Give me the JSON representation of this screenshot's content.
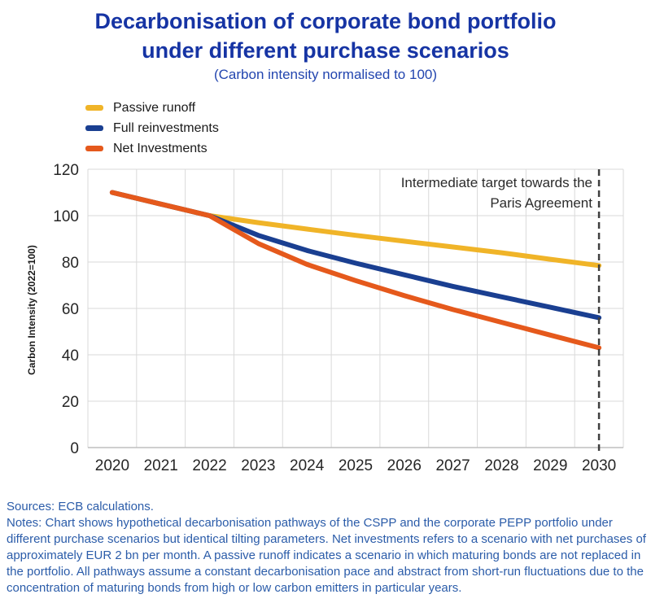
{
  "header": {
    "title_line1": "Decarbonisation of corporate bond portfolio",
    "title_line2": "under different purchase scenarios",
    "subtitle": "(Carbon intensity normalised to 100)"
  },
  "chart_data": {
    "type": "line",
    "x": [
      "2020",
      "2021",
      "2022",
      "2023",
      "2024",
      "2025",
      "2026",
      "2027",
      "2028",
      "2029",
      "2030"
    ],
    "series": [
      {
        "name": "Passive runoff",
        "color": "#F0B428",
        "values": [
          110,
          105,
          100,
          97,
          94.2,
          91.5,
          89,
          86.5,
          84,
          81.2,
          78.5
        ]
      },
      {
        "name": "Full reinvestments",
        "color": "#1A3F91",
        "values": [
          110,
          105,
          100,
          91.5,
          85,
          79.5,
          74.5,
          69.5,
          65,
          60.5,
          56
        ]
      },
      {
        "name": "Net Investments",
        "color": "#E5591C",
        "values": [
          110,
          105,
          100,
          88,
          79,
          72,
          65.5,
          59.5,
          54,
          48.5,
          43
        ]
      }
    ],
    "ylabel": "Carbon Intensity (2022=100)",
    "xlabel": "",
    "ylim": [
      0,
      120
    ],
    "ytick_step": 20,
    "grid": true,
    "legend_position": "top-left",
    "target_year": "2030",
    "annotation": {
      "line1": "Intermediate target towards the",
      "line2": "Paris Agreement"
    }
  },
  "footer": {
    "sources": "Sources: ECB calculations.",
    "notes": "Notes: Chart shows hypothetical decarbonisation pathways of the CSPP and the corporate PEPP portfolio under different purchase scenarios but identical tilting parameters. Net investments refers to a scenario with net purchases of approximately EUR 2 bn per month. A passive runoff indicates a scenario in which maturing bonds are not replaced in the portfolio. All pathways assume a constant decarbonisation pace and abstract from short-run fluctuations due to the concentration of maturing bonds from high or low carbon emitters in particular years."
  },
  "colors": {
    "title": "#1634A4",
    "footer_text": "#2B5CA9",
    "axis_text": "#262626",
    "gridline": "#D9D9D9",
    "axis_line": "#BFBFBF",
    "dashed_target_line": "#3F3F3F"
  }
}
